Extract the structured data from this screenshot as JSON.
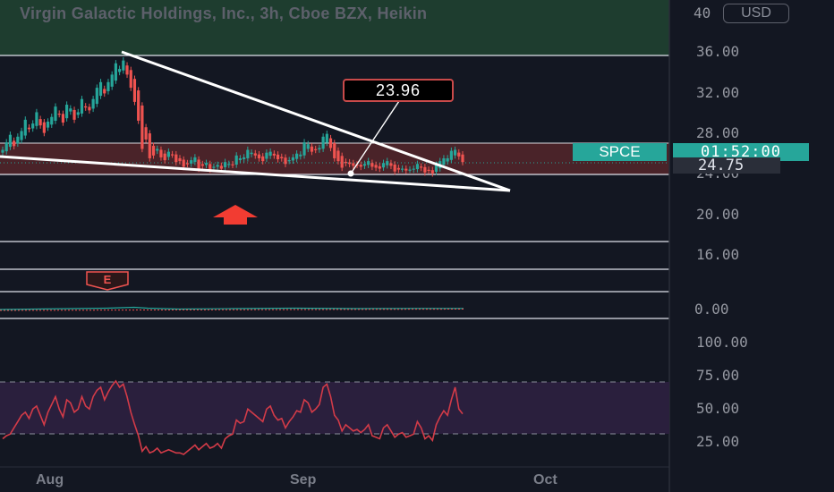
{
  "header": {
    "title": "Virgin Galactic Holdings, Inc., 3h, Cboe BZX, Heikin",
    "currency": "USD"
  },
  "price_badges": {
    "ticker": "SPCE",
    "countdown": "01:52:00",
    "last_price": "24.75"
  },
  "annotation": {
    "callout": "23.96"
  },
  "events": {
    "earnings_label": "E"
  },
  "colors": {
    "background": "#131722",
    "up": "#26a69a",
    "down": "#ef5350",
    "rsi_line": "#d33b48",
    "rsi_band": "#2a1f3d",
    "zone_green": "#1e3d2f",
    "zone_red": "#4a2329"
  },
  "icons": [
    "arrow-up-icon",
    "earnings-marker-icon"
  ],
  "chart_data": [
    {
      "type": "candlestick",
      "style": "Heikin Ashi",
      "price_axis_ticks": [
        "40",
        "36.00",
        "32.00",
        "28.00",
        "24.00",
        "20.00",
        "16.00"
      ],
      "time_axis_ticks": [
        "Aug",
        "Sep",
        "Oct"
      ],
      "ylim": [
        13.8,
        41
      ],
      "last_price": 24.75,
      "annotation_value": 23.96,
      "close": [
        26.4,
        27.2,
        28.0,
        26.8,
        27.8,
        28.4,
        29.6,
        28.6,
        29.2,
        30.4,
        29.0,
        28.2,
        29.4,
        29.9,
        31.0,
        30.2,
        29.3,
        31.2,
        30.8,
        29.6,
        30.4,
        31.8,
        30.9,
        30.6,
        31.8,
        33.0,
        33.6,
        32.4,
        33.6,
        34.4,
        35.6,
        35.0,
        35.9,
        34.4,
        33.0,
        31.5,
        29.5,
        26.5,
        27.5,
        25.5,
        25.8,
        26.5,
        25.6,
        25.3,
        26.2,
        25.9,
        25.1,
        25.2,
        24.6,
        24.9,
        25.3,
        25.6,
        24.4,
        24.7,
        25.0,
        24.3,
        24.6,
        24.8,
        24.4,
        25.1,
        24.9,
        24.8,
        25.8,
        25.5,
        25.6,
        26.4,
        26.1,
        25.8,
        25.5,
        25.2,
        26.1,
        26.2,
        25.8,
        25.4,
        25.5,
        24.9,
        25.3,
        25.6,
        26.0,
        25.9,
        27.2,
        27.0,
        26.2,
        26.4,
        26.6,
        27.8,
        28.1,
        26.6,
        25.5,
        25.2,
        24.5,
        25.0,
        24.9,
        24.7,
        24.8,
        24.6,
        24.9,
        25.2,
        24.6,
        24.5,
        24.4,
        25.0,
        25.2,
        24.7,
        24.1,
        24.3,
        24.4,
        24.2,
        24.3,
        24.4,
        24.9,
        24.5,
        24.0,
        24.2,
        23.9,
        24.8,
        25.2,
        25.5,
        25.5,
        26.3,
        26.4,
        25.7,
        25.1
      ],
      "resistance_levels": [
        36.4,
        26.7,
        24.0,
        17.6
      ]
    },
    {
      "type": "line",
      "name": "MACD",
      "ticks": [
        "0.00"
      ],
      "ylim": [
        -1,
        1
      ]
    },
    {
      "type": "line",
      "name": "RSI",
      "ticks": [
        "100.00",
        "75.00",
        "50.00",
        "25.00"
      ],
      "ylim": [
        15,
        110
      ],
      "band": [
        30,
        70
      ],
      "values": [
        33,
        35,
        36,
        40,
        44,
        48,
        50,
        46,
        52,
        54,
        48,
        42,
        50,
        55,
        60,
        52,
        47,
        58,
        56,
        50,
        52,
        60,
        54,
        52,
        60,
        64,
        66,
        58,
        63,
        67,
        70,
        66,
        68,
        60,
        50,
        42,
        35,
        25,
        28,
        24,
        25,
        27,
        24,
        25,
        26,
        25,
        24,
        24,
        23,
        25,
        27,
        29,
        26,
        28,
        30,
        27,
        28,
        30,
        27,
        33,
        35,
        36,
        45,
        43,
        44,
        52,
        50,
        48,
        46,
        44,
        52,
        54,
        48,
        45,
        46,
        40,
        44,
        47,
        51,
        50,
        58,
        56,
        50,
        52,
        55,
        66,
        68,
        60,
        48,
        45,
        38,
        42,
        40,
        38,
        39,
        37,
        39,
        42,
        35,
        34,
        33,
        40,
        42,
        38,
        34,
        36,
        37,
        34,
        35,
        36,
        44,
        40,
        33,
        35,
        32,
        42,
        47,
        51,
        48,
        58,
        66,
        52,
        49
      ]
    }
  ]
}
